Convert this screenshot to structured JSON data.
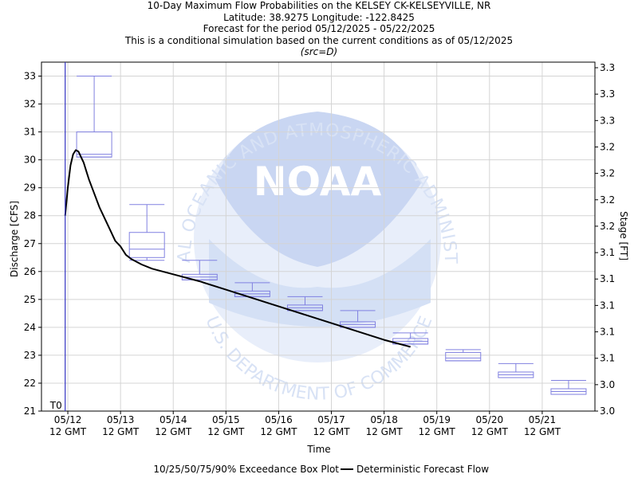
{
  "header": {
    "title": "10-Day Maximum Flow Probabilities on the KELSEY CK-KELSEYVILLE, NR",
    "location": "Latitude: 38.9275 Longitude: -122.8425",
    "period": "Forecast for the period 05/12/2025 - 05/22/2025",
    "condition": "This is a conditional simulation based on the current conditions as of 05/12/2025",
    "source": "(src=D)"
  },
  "watermark": {
    "logo_text": "NOAA",
    "ring_text_top": "NATIONAL OCEANIC AND ATMOSPHERIC ADMINISTRATION",
    "ring_text_bottom": "U.S. DEPARTMENT OF COMMERCE"
  },
  "chart_data": {
    "type": "box",
    "xlabel": "Time",
    "ylabel_left": "Discharge [CFS]",
    "ylabel_right": "Stage [FT]",
    "ylim": [
      21,
      33.5
    ],
    "yticks": [
      21,
      22,
      23,
      24,
      25,
      26,
      27,
      28,
      29,
      30,
      31,
      32,
      33
    ],
    "right_ticks": [
      "3.0",
      "3.0",
      "3.1",
      "3.1",
      "3.1",
      "3.1",
      "3.1",
      "3.2",
      "3.2",
      "3.2",
      "3.2",
      "3.3",
      "3.3",
      "3.3"
    ],
    "xlim_days": [
      -0.5,
      10
    ],
    "x_ticks": [
      {
        "d": 0,
        "date": "05/12",
        "time": "12 GMT"
      },
      {
        "d": 1,
        "date": "05/13",
        "time": "12 GMT"
      },
      {
        "d": 2,
        "date": "05/14",
        "time": "12 GMT"
      },
      {
        "d": 3,
        "date": "05/15",
        "time": "12 GMT"
      },
      {
        "d": 4,
        "date": "05/16",
        "time": "12 GMT"
      },
      {
        "d": 5,
        "date": "05/17",
        "time": "12 GMT"
      },
      {
        "d": 6,
        "date": "05/18",
        "time": "12 GMT"
      },
      {
        "d": 7,
        "date": "05/19",
        "time": "12 GMT"
      },
      {
        "d": 8,
        "date": "05/20",
        "time": "12 GMT"
      },
      {
        "d": 9,
        "date": "05/21",
        "time": "12 GMT"
      }
    ],
    "t0_label": "T0",
    "t0_day": -0.05,
    "grid": true,
    "boxes": [
      {
        "day": 0.5,
        "p10": 30.1,
        "p25": 30.1,
        "p50": 30.2,
        "p75": 31.0,
        "p90": 33.0
      },
      {
        "day": 1.5,
        "p10": 26.4,
        "p25": 26.5,
        "p50": 26.8,
        "p75": 27.4,
        "p90": 28.4
      },
      {
        "day": 2.5,
        "p10": 25.7,
        "p25": 25.7,
        "p50": 25.8,
        "p75": 25.9,
        "p90": 26.4
      },
      {
        "day": 3.5,
        "p10": 25.1,
        "p25": 25.1,
        "p50": 25.2,
        "p75": 25.3,
        "p90": 25.6
      },
      {
        "day": 4.5,
        "p10": 24.6,
        "p25": 24.6,
        "p50": 24.7,
        "p75": 24.8,
        "p90": 25.1
      },
      {
        "day": 5.5,
        "p10": 24.0,
        "p25": 24.0,
        "p50": 24.1,
        "p75": 24.2,
        "p90": 24.6
      },
      {
        "day": 6.5,
        "p10": 23.4,
        "p25": 23.4,
        "p50": 23.5,
        "p75": 23.6,
        "p90": 23.8
      },
      {
        "day": 7.5,
        "p10": 22.8,
        "p25": 22.8,
        "p50": 22.9,
        "p75": 23.1,
        "p90": 23.2
      },
      {
        "day": 8.5,
        "p10": 22.2,
        "p25": 22.2,
        "p50": 22.3,
        "p75": 22.4,
        "p90": 22.7
      },
      {
        "day": 9.5,
        "p10": 21.6,
        "p25": 21.6,
        "p50": 21.7,
        "p75": 21.8,
        "p90": 22.1
      }
    ],
    "deterministic": {
      "x": [
        -0.05,
        0.0,
        0.05,
        0.1,
        0.15,
        0.2,
        0.25,
        0.3,
        0.35,
        0.4,
        0.5,
        0.6,
        0.7,
        0.8,
        0.9,
        1.0,
        1.1,
        1.2,
        1.4,
        1.6,
        1.8,
        2.0,
        2.5,
        3.0,
        3.5,
        4.0,
        4.5,
        5.0,
        5.5,
        6.0,
        6.3,
        6.5
      ],
      "y": [
        28.0,
        29.0,
        29.8,
        30.2,
        30.35,
        30.3,
        30.1,
        29.9,
        29.6,
        29.3,
        28.8,
        28.3,
        27.9,
        27.5,
        27.1,
        26.9,
        26.6,
        26.45,
        26.25,
        26.1,
        26.0,
        25.9,
        25.65,
        25.35,
        25.05,
        24.75,
        24.45,
        24.15,
        23.85,
        23.55,
        23.4,
        23.3
      ]
    },
    "legend": {
      "box_label": "10/25/50/75/90% Exceedance Box Plot",
      "line_label": "Deterministic Forecast Flow"
    },
    "colors": {
      "box": "#8080e0",
      "line": "#000000",
      "t0": "#3030c0",
      "grid": "#d4d4d4",
      "watermark": "#dbe6f5"
    }
  }
}
